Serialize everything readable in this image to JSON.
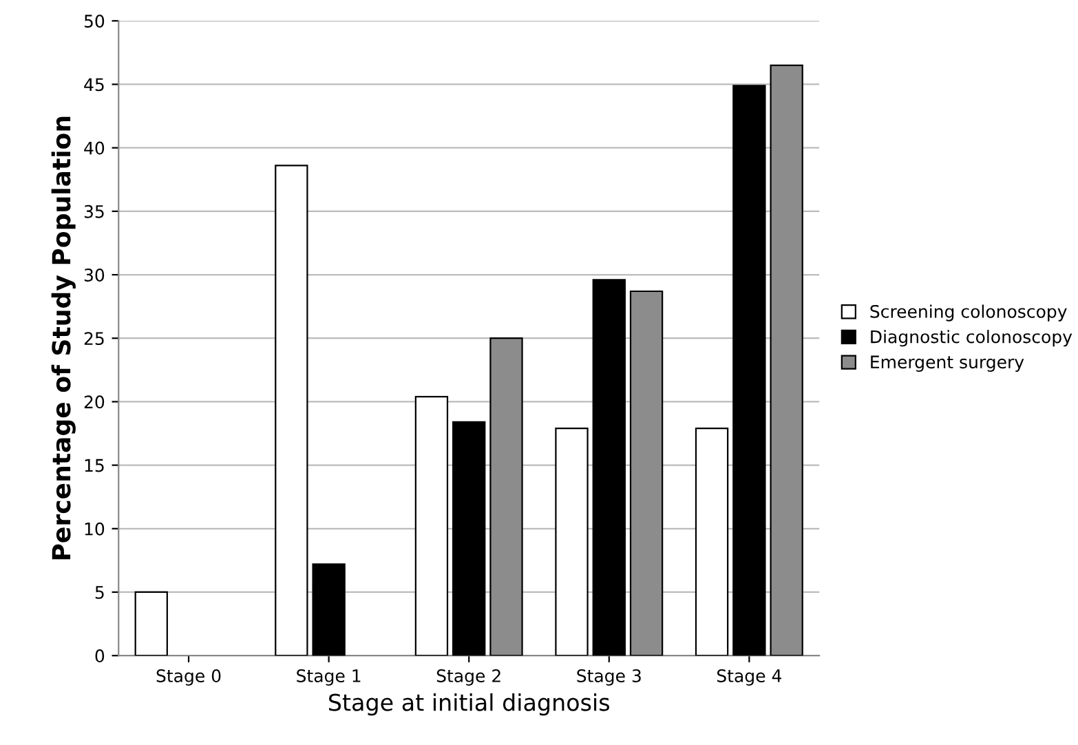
{
  "chart_data": {
    "type": "bar",
    "xlabel": "Stage at initial diagnosis",
    "ylabel": "Percentage of Study Population",
    "categories": [
      "Stage 0",
      "Stage 1",
      "Stage 2",
      "Stage 3",
      "Stage 4"
    ],
    "series": [
      {
        "name": "Screening colonoscopy",
        "color": "#ffffff",
        "values": [
          5.0,
          38.6,
          20.4,
          17.9,
          17.9
        ]
      },
      {
        "name": "Diagnostic colonoscopy",
        "color": "#000000",
        "values": [
          null,
          7.2,
          18.4,
          29.6,
          44.9
        ]
      },
      {
        "name": "Emergent surgery",
        "color": "#8c8c8c",
        "values": [
          null,
          null,
          25.0,
          28.7,
          46.5
        ]
      }
    ],
    "ylim": [
      0,
      50
    ],
    "yticks": [
      0,
      5,
      10,
      15,
      20,
      25,
      30,
      35,
      40,
      45,
      50
    ],
    "grid": "y",
    "legend": "right"
  }
}
